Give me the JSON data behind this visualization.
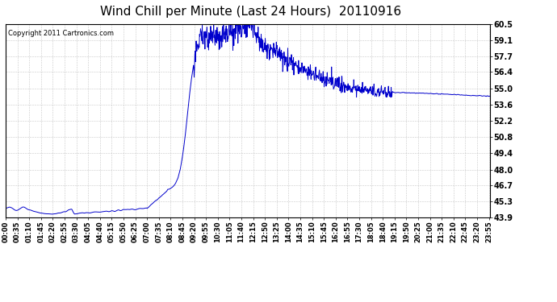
{
  "title": "Wind Chill per Minute (Last 24 Hours)  20110916",
  "copyright_text": "Copyright 2011 Cartronics.com",
  "line_color": "#0000cc",
  "bg_color": "#ffffff",
  "plot_bg_color": "#ffffff",
  "grid_color": "#bbbbbb",
  "yticks": [
    43.9,
    45.3,
    46.7,
    48.0,
    49.4,
    50.8,
    52.2,
    53.6,
    55.0,
    56.4,
    57.7,
    59.1,
    60.5
  ],
  "ylim": [
    43.9,
    60.5
  ],
  "title_fontsize": 11,
  "tick_fontsize": 7,
  "x_tick_labels": [
    "00:00",
    "00:35",
    "01:10",
    "01:45",
    "02:20",
    "02:55",
    "03:30",
    "04:05",
    "04:40",
    "05:15",
    "05:50",
    "06:25",
    "07:00",
    "07:35",
    "08:10",
    "08:45",
    "09:20",
    "09:55",
    "10:30",
    "11:05",
    "11:40",
    "12:15",
    "12:50",
    "13:25",
    "14:00",
    "14:35",
    "15:10",
    "15:45",
    "16:20",
    "16:55",
    "17:30",
    "18:05",
    "18:40",
    "19:15",
    "19:50",
    "20:25",
    "21:00",
    "21:35",
    "22:10",
    "22:45",
    "23:20",
    "23:55"
  ],
  "x_tick_positions": [
    0,
    35,
    70,
    105,
    140,
    175,
    210,
    245,
    280,
    315,
    350,
    385,
    420,
    455,
    490,
    525,
    560,
    595,
    630,
    665,
    700,
    735,
    770,
    805,
    840,
    875,
    910,
    945,
    980,
    1015,
    1050,
    1085,
    1120,
    1155,
    1190,
    1225,
    1260,
    1295,
    1330,
    1365,
    1400,
    1435
  ]
}
